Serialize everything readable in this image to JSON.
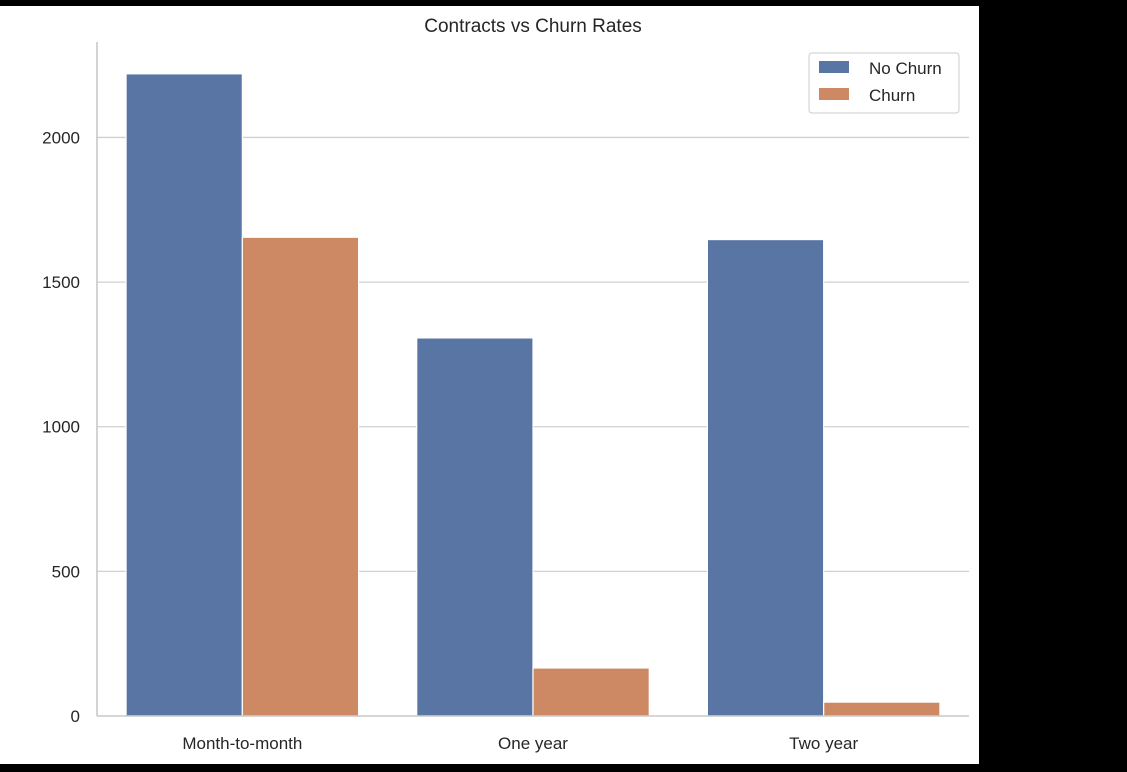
{
  "chart_data": {
    "type": "bar",
    "title": "Contracts vs Churn Rates",
    "xlabel": "",
    "ylabel": "",
    "categories": [
      "Month-to-month",
      "One year",
      "Two year"
    ],
    "series": [
      {
        "name": "No Churn",
        "color": "#5975a4",
        "values": [
          2220,
          1307,
          1647
        ]
      },
      {
        "name": "Churn",
        "color": "#cc8963",
        "values": [
          1655,
          166,
          48
        ]
      }
    ],
    "ylim": [
      0,
      2330
    ],
    "yticks": [
      0,
      500,
      1000,
      1500,
      2000
    ],
    "grid": "horizontal",
    "legend": "top-right"
  }
}
